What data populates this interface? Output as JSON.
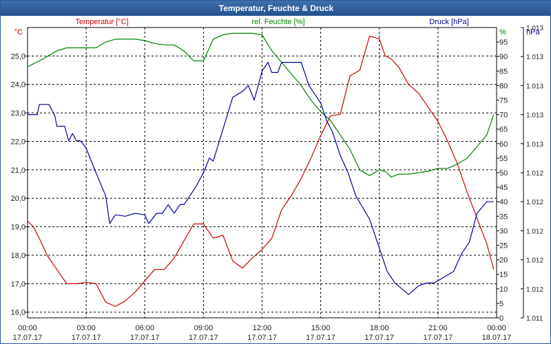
{
  "window": {
    "title": "Temperatur, Feuchte & Druck"
  },
  "chart_data": {
    "type": "line",
    "title": "Temperatur, Feuchte & Druck",
    "grid": true,
    "x": {
      "range": [
        0,
        24
      ],
      "ticks": [
        {
          "value": 0,
          "time": "00:00",
          "date": "17.07.17"
        },
        {
          "value": 3,
          "time": "03:00",
          "date": "17.07.17"
        },
        {
          "value": 6,
          "time": "06:00",
          "date": "17.07.17"
        },
        {
          "value": 9,
          "time": "09:00",
          "date": "17.07.17"
        },
        {
          "value": 12,
          "time": "12:00",
          "date": "17.07.17"
        },
        {
          "value": 15,
          "time": "15:00",
          "date": "17.07.17"
        },
        {
          "value": 18,
          "time": "18:00",
          "date": "17.07.17"
        },
        {
          "value": 21,
          "time": "21:00",
          "date": "17.07.17"
        },
        {
          "value": 24,
          "time": "00:00",
          "date": "18.07.17"
        }
      ]
    },
    "axes": {
      "temperature": {
        "label": "Temperatur [°C]",
        "unit": "°C",
        "color": "#cc0000",
        "range": [
          15.8,
          26.0
        ],
        "ticks": [
          {
            "v": 16.0,
            "label": "16,0"
          },
          {
            "v": 17.0,
            "label": "17,0"
          },
          {
            "v": 18.0,
            "label": "18,0"
          },
          {
            "v": 19.0,
            "label": "19,0"
          },
          {
            "v": 20.0,
            "label": "20,0"
          },
          {
            "v": 21.0,
            "label": "21,0"
          },
          {
            "v": 22.0,
            "label": "22,0"
          },
          {
            "v": 23.0,
            "label": "23,0"
          },
          {
            "v": 24.0,
            "label": "24,0"
          },
          {
            "v": 25.0,
            "label": "25,0"
          }
        ]
      },
      "humidity": {
        "label": "rel. Feuchte [%]",
        "unit": "%",
        "color": "#008000",
        "range": [
          0,
          100
        ],
        "ticks": [
          {
            "v": 0,
            "label": "0"
          },
          {
            "v": 5,
            "label": "5"
          },
          {
            "v": 10,
            "label": "10"
          },
          {
            "v": 15,
            "label": "15"
          },
          {
            "v": 20,
            "label": "20"
          },
          {
            "v": 25,
            "label": "25"
          },
          {
            "v": 30,
            "label": "30"
          },
          {
            "v": 35,
            "label": "35"
          },
          {
            "v": 40,
            "label": "40"
          },
          {
            "v": 45,
            "label": "45"
          },
          {
            "v": 50,
            "label": "50"
          },
          {
            "v": 55,
            "label": "55"
          },
          {
            "v": 60,
            "label": "60"
          },
          {
            "v": 65,
            "label": "65"
          },
          {
            "v": 70,
            "label": "70"
          },
          {
            "v": 75,
            "label": "75"
          },
          {
            "v": 80,
            "label": "80"
          },
          {
            "v": 85,
            "label": "85"
          },
          {
            "v": 90,
            "label": "90"
          },
          {
            "v": 95,
            "label": "95"
          }
        ]
      },
      "pressure": {
        "label": "Druck [hPa]",
        "unit": "hPa",
        "color": "#000099",
        "range": [
          0,
          10
        ],
        "ticks": [
          {
            "v": 0,
            "label": "1.011"
          },
          {
            "v": 1,
            "label": "1.012"
          },
          {
            "v": 2,
            "label": "1.012"
          },
          {
            "v": 3,
            "label": "1.012"
          },
          {
            "v": 4,
            "label": "1.012"
          },
          {
            "v": 5,
            "label": "1.012"
          },
          {
            "v": 6,
            "label": "1.013"
          },
          {
            "v": 7,
            "label": "1.013"
          },
          {
            "v": 8,
            "label": "1.013"
          },
          {
            "v": 9,
            "label": "1.013"
          },
          {
            "v": 10,
            "label": "1.013"
          }
        ]
      }
    },
    "series": [
      {
        "name": "Temperatur [°C]",
        "axis": "temperature",
        "color": "#cc0000",
        "x": [
          0,
          0.3,
          0.6,
          1,
          1.5,
          2,
          2.5,
          3,
          3.5,
          4,
          4.5,
          5,
          5.5,
          6,
          6.5,
          7,
          7.5,
          8,
          8.5,
          9,
          9.5,
          10,
          10.5,
          11,
          11.5,
          12,
          12.5,
          13,
          13.5,
          14,
          14.5,
          15,
          15.5,
          16,
          16.5,
          17,
          17.5,
          18,
          18.3,
          18.6,
          19,
          19.5,
          20,
          20.5,
          21,
          21.5,
          22,
          22.5,
          23,
          23.5,
          23.85
        ],
        "values": [
          19.2,
          19.0,
          18.6,
          18.0,
          17.5,
          17.0,
          17.0,
          17.05,
          17.0,
          16.35,
          16.2,
          16.4,
          16.7,
          17.1,
          17.5,
          17.5,
          17.9,
          18.5,
          19.1,
          19.1,
          18.6,
          18.7,
          17.8,
          17.55,
          17.9,
          18.2,
          18.6,
          19.6,
          20.1,
          20.7,
          21.4,
          22.2,
          22.9,
          22.95,
          24.3,
          24.5,
          25.7,
          25.6,
          25.0,
          24.9,
          24.6,
          24.0,
          23.7,
          23.2,
          22.7,
          22.0,
          21.2,
          20.2,
          19.3,
          18.4,
          17.5
        ]
      },
      {
        "name": "rel. Feuchte [%]",
        "axis": "humidity",
        "color": "#008000",
        "x": [
          0,
          0.3,
          0.6,
          1,
          1.5,
          2,
          2.5,
          3,
          3.5,
          4,
          4.5,
          5,
          5.5,
          6,
          6.5,
          7,
          7.5,
          8,
          8.5,
          9,
          9.5,
          10,
          10.5,
          11,
          11.5,
          12,
          12.5,
          13,
          13.5,
          14,
          14.5,
          15,
          15.5,
          16,
          16.5,
          17,
          17.5,
          18,
          18.3,
          18.6,
          19,
          19.5,
          20,
          20.5,
          21,
          21.5,
          22,
          22.5,
          23,
          23.5,
          23.85
        ],
        "values": [
          86.5,
          87.5,
          88.5,
          90,
          92,
          93,
          93,
          93,
          93,
          95,
          96,
          96,
          96,
          95.5,
          94.5,
          94,
          94,
          92,
          88.5,
          88.5,
          96,
          97.5,
          98,
          98,
          98,
          97.5,
          92,
          88,
          84,
          80,
          75,
          71,
          68,
          63,
          58,
          51,
          49,
          51,
          50.5,
          48.5,
          49.5,
          49.5,
          50,
          50.5,
          51.5,
          51.5,
          53,
          55,
          59,
          63,
          70
        ]
      },
      {
        "name": "Druck [hPa]",
        "axis": "pressure",
        "color": "#000099",
        "x": [
          0,
          0.5,
          0.6,
          1.1,
          1.4,
          1.5,
          1.9,
          2.1,
          2.3,
          2.5,
          2.7,
          3,
          3.2,
          3.5,
          4,
          4.2,
          4.5,
          5,
          5.5,
          6,
          6.2,
          6.6,
          6.9,
          7.2,
          7.5,
          7.8,
          8,
          8.3,
          8.6,
          9,
          9.3,
          9.5,
          10,
          10.5,
          11,
          11.3,
          11.6,
          12,
          12.3,
          12.5,
          12.8,
          13,
          13.5,
          14,
          14.4,
          15,
          15.3,
          15.6,
          16,
          16.4,
          16.8,
          17.5,
          18,
          18.4,
          18.8,
          19.5,
          20,
          20.4,
          20.8,
          21.3,
          21.8,
          22.2,
          22.6,
          23,
          23.5,
          23.85
        ],
        "values": [
          7.0,
          7.0,
          7.35,
          7.35,
          6.95,
          6.6,
          6.6,
          6.1,
          6.35,
          6.1,
          6.1,
          5.85,
          5.5,
          5.0,
          4.2,
          3.25,
          3.55,
          3.5,
          3.6,
          3.55,
          3.25,
          3.6,
          3.6,
          3.9,
          3.6,
          3.9,
          3.9,
          4.2,
          4.5,
          5.0,
          5.5,
          5.4,
          6.5,
          7.6,
          7.8,
          8.0,
          7.5,
          8.5,
          8.8,
          8.45,
          8.45,
          8.8,
          8.8,
          8.8,
          8.0,
          7.4,
          6.8,
          6.4,
          5.6,
          5.0,
          4.2,
          3.4,
          2.4,
          1.6,
          1.2,
          0.8,
          1.1,
          1.2,
          1.2,
          1.4,
          1.6,
          2.2,
          2.6,
          3.6,
          4.0,
          4.0
        ]
      }
    ]
  }
}
